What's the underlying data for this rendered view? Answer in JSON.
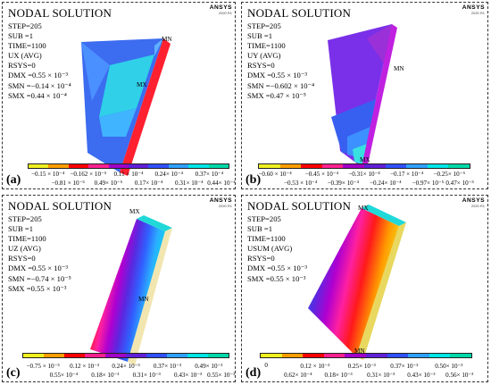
{
  "colors": {
    "legend": [
      "#f0f020",
      "#ff9d00",
      "#ff0000",
      "#ff2090",
      "#a000c8",
      "#6020d8",
      "#3050ff",
      "#2fa0ff",
      "#00e5e5",
      "#00d8a8"
    ]
  },
  "panels": [
    {
      "id": "a",
      "label": "(a)",
      "title": "NODAL SOLUTION",
      "info": [
        "STEP=205",
        "SUB =1",
        "TIME=1100",
        "UX       (AVG)",
        "RSYS=0",
        "DMX =0.55 × 10⁻³",
        "SMN =−0.14 × 10⁻⁴",
        "SMX =0.44 × 10⁻⁴"
      ],
      "logo": {
        "brand": "ANSYS",
        "version": "2020 R1"
      },
      "markers": {
        "mn": "MN",
        "mx": "MX"
      },
      "legend_top": [
        "−0.15 × 10⁻⁴",
        "−0.162 × 10⁻⁵",
        "0.11 × 10⁻⁴",
        "0.24× 10⁻⁴",
        "0.37× 10⁻⁴"
      ],
      "legend_bottom": [
        "−0.81 × 10⁻⁵",
        "0.49× 10⁻⁵",
        "0.17× 10⁻⁴",
        "0.31× 10⁻⁴",
        "0.44× 10⁻⁴"
      ]
    },
    {
      "id": "b",
      "label": "(b)",
      "title": "NODAL SOLUTION",
      "info": [
        "STEP=205",
        "SUB =1",
        "TIME=1100",
        "UY       (AVG)",
        "RSYS=0",
        "DMX =0.55 × 10⁻³",
        "SMN =−0.602 × 10⁻⁴",
        "SMX =0.47 × 10⁻⁵"
      ],
      "logo": {
        "brand": "ANSYS",
        "version": "2020 R1"
      },
      "markers": {
        "mn": "MN",
        "mx": "MX"
      },
      "legend_top": [
        "−0.60 × 10⁻⁴",
        "−0.45 × 10⁻⁴",
        "−0.31× 10⁻⁴",
        "−0.17 × 10⁻⁴",
        "−0.25× 10⁻⁵"
      ],
      "legend_bottom": [
        "−0.53 × 10⁻⁴",
        "−0.39× 10⁻⁴",
        "−0.24× 10⁻⁴",
        "−0.97× 10⁻⁵",
        "0.47× 10⁻⁵"
      ]
    },
    {
      "id": "c",
      "label": "(c)",
      "title": "NODAL SOLUTION",
      "info": [
        "STEP=205",
        "SUB =1",
        "TIME=1100",
        "UZ       (AVG)",
        "RSYS=0",
        "DMX =0.55 × 10⁻³",
        "SMN =−0.74 × 10⁻⁵",
        "SMX =0.55 × 10⁻³"
      ],
      "logo": {
        "brand": "ANSYS",
        "version": "2020 R1"
      },
      "markers": {
        "mn": "MN",
        "mx": "MX"
      },
      "legend_top": [
        "−0.75 × 10⁻⁵",
        "0.12 × 10⁻³",
        "0.24× 10⁻³",
        "0.37× 10⁻³",
        "0.49× 10⁻³"
      ],
      "legend_bottom": [
        "0.55× 10⁻⁴",
        "0.18× 10⁻³",
        "0.31× 10⁻³",
        "0.43× 10⁻³",
        "0.55× 10⁻³"
      ]
    },
    {
      "id": "d",
      "label": "(d)",
      "title": "NODAL SOLUTION",
      "info": [
        "STEP=205",
        "SUB =1",
        "TIME=1100",
        "USUM     (AVG)",
        "RSYS=0",
        "DMX =0.55 × 10⁻³",
        "SMX =0.55 × 10⁻³"
      ],
      "logo": {
        "brand": "ANSYS",
        "version": "2020 R1"
      },
      "markers": {
        "mn": "MN",
        "mx": "MX"
      },
      "legend_top": [
        "0",
        "0.12 × 10⁻³",
        "0.25× 10⁻³",
        "0.37× 10⁻³",
        "0.50× 10⁻³"
      ],
      "legend_bottom": [
        "0.62× 10⁻⁴",
        "0.18× 10⁻³",
        "0.31× 10⁻³",
        "0.43× 10⁻³",
        "0.56× 10⁻³"
      ]
    }
  ]
}
